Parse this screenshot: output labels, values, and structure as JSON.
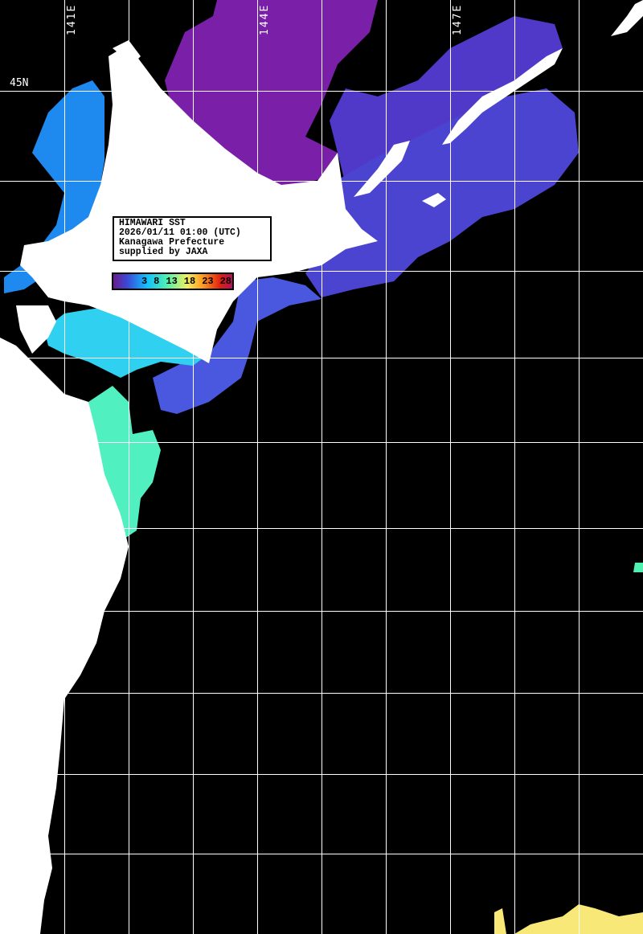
{
  "info": {
    "title": "HIMAWARI SST",
    "datetime": "2026/01/11 01:00 (UTC)",
    "region": "Kanagawa Prefecture",
    "credit": "supplied by JAXA"
  },
  "colorbar": {
    "ticks": [
      "3",
      "8",
      "13",
      "18",
      "23",
      "28"
    ],
    "colors": [
      "#6a1a8e",
      "#3a4ad8",
      "#10c0ff",
      "#50f0b0",
      "#f0f060",
      "#ff9a20",
      "#e02010",
      "#b0105a"
    ]
  },
  "axes": {
    "longitude_labels": [
      "141E",
      "144E",
      "147E"
    ],
    "latitude_labels": [
      "45N"
    ]
  },
  "colors": {
    "land": "#ffffff",
    "no_data": "#000000",
    "grid": "#ffffff"
  }
}
